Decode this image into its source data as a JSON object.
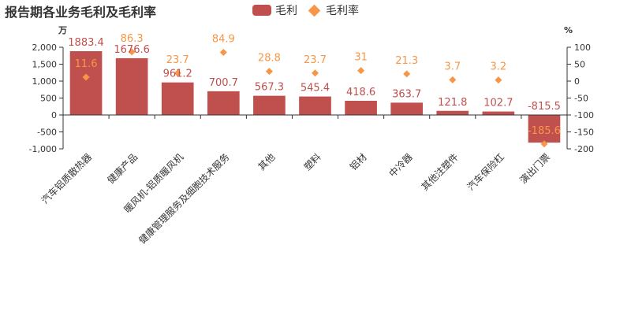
{
  "chart_data": {
    "type": "bar",
    "title": "报告期各业务毛利及毛利率",
    "categories": [
      "汽车铝质散热器",
      "健康产品",
      "暖风机-铝质暖风机",
      "健康管理服务及细胞技术服务",
      "其他",
      "塑料",
      "铝材",
      "中冷器",
      "其他注塑件",
      "汽车保险杠",
      "演出门票"
    ],
    "series": [
      {
        "name": "毛利",
        "type": "bar",
        "axis": "left",
        "color": "#c0504d",
        "values": [
          1883.4,
          1676.6,
          961.2,
          700.7,
          567.3,
          545.4,
          418.6,
          363.7,
          121.8,
          102.7,
          -815.5
        ]
      },
      {
        "name": "毛利率",
        "type": "scatter",
        "axis": "right",
        "color": "#f79646",
        "values": [
          11.6,
          86.3,
          23.7,
          84.9,
          28.8,
          23.7,
          31,
          21.3,
          3.7,
          3.2,
          -185.6
        ]
      }
    ],
    "y_left": {
      "unit": "万",
      "min": -1000,
      "max": 2000,
      "ticks": [
        2000,
        1500,
        1000,
        500,
        0,
        -500,
        -1000
      ],
      "tick_labels": [
        "2,000",
        "1,500",
        "1,000",
        "500",
        "0",
        "-500",
        "-1,000"
      ]
    },
    "y_right": {
      "unit": "%",
      "min": -200,
      "max": 100,
      "ticks": [
        100,
        50,
        0,
        -50,
        -100,
        -150,
        -200
      ],
      "tick_labels": [
        "100",
        "50",
        "0",
        "-50",
        "-100",
        "-150",
        "-200"
      ]
    },
    "legend": {
      "position": "top-center"
    },
    "grid": false
  }
}
